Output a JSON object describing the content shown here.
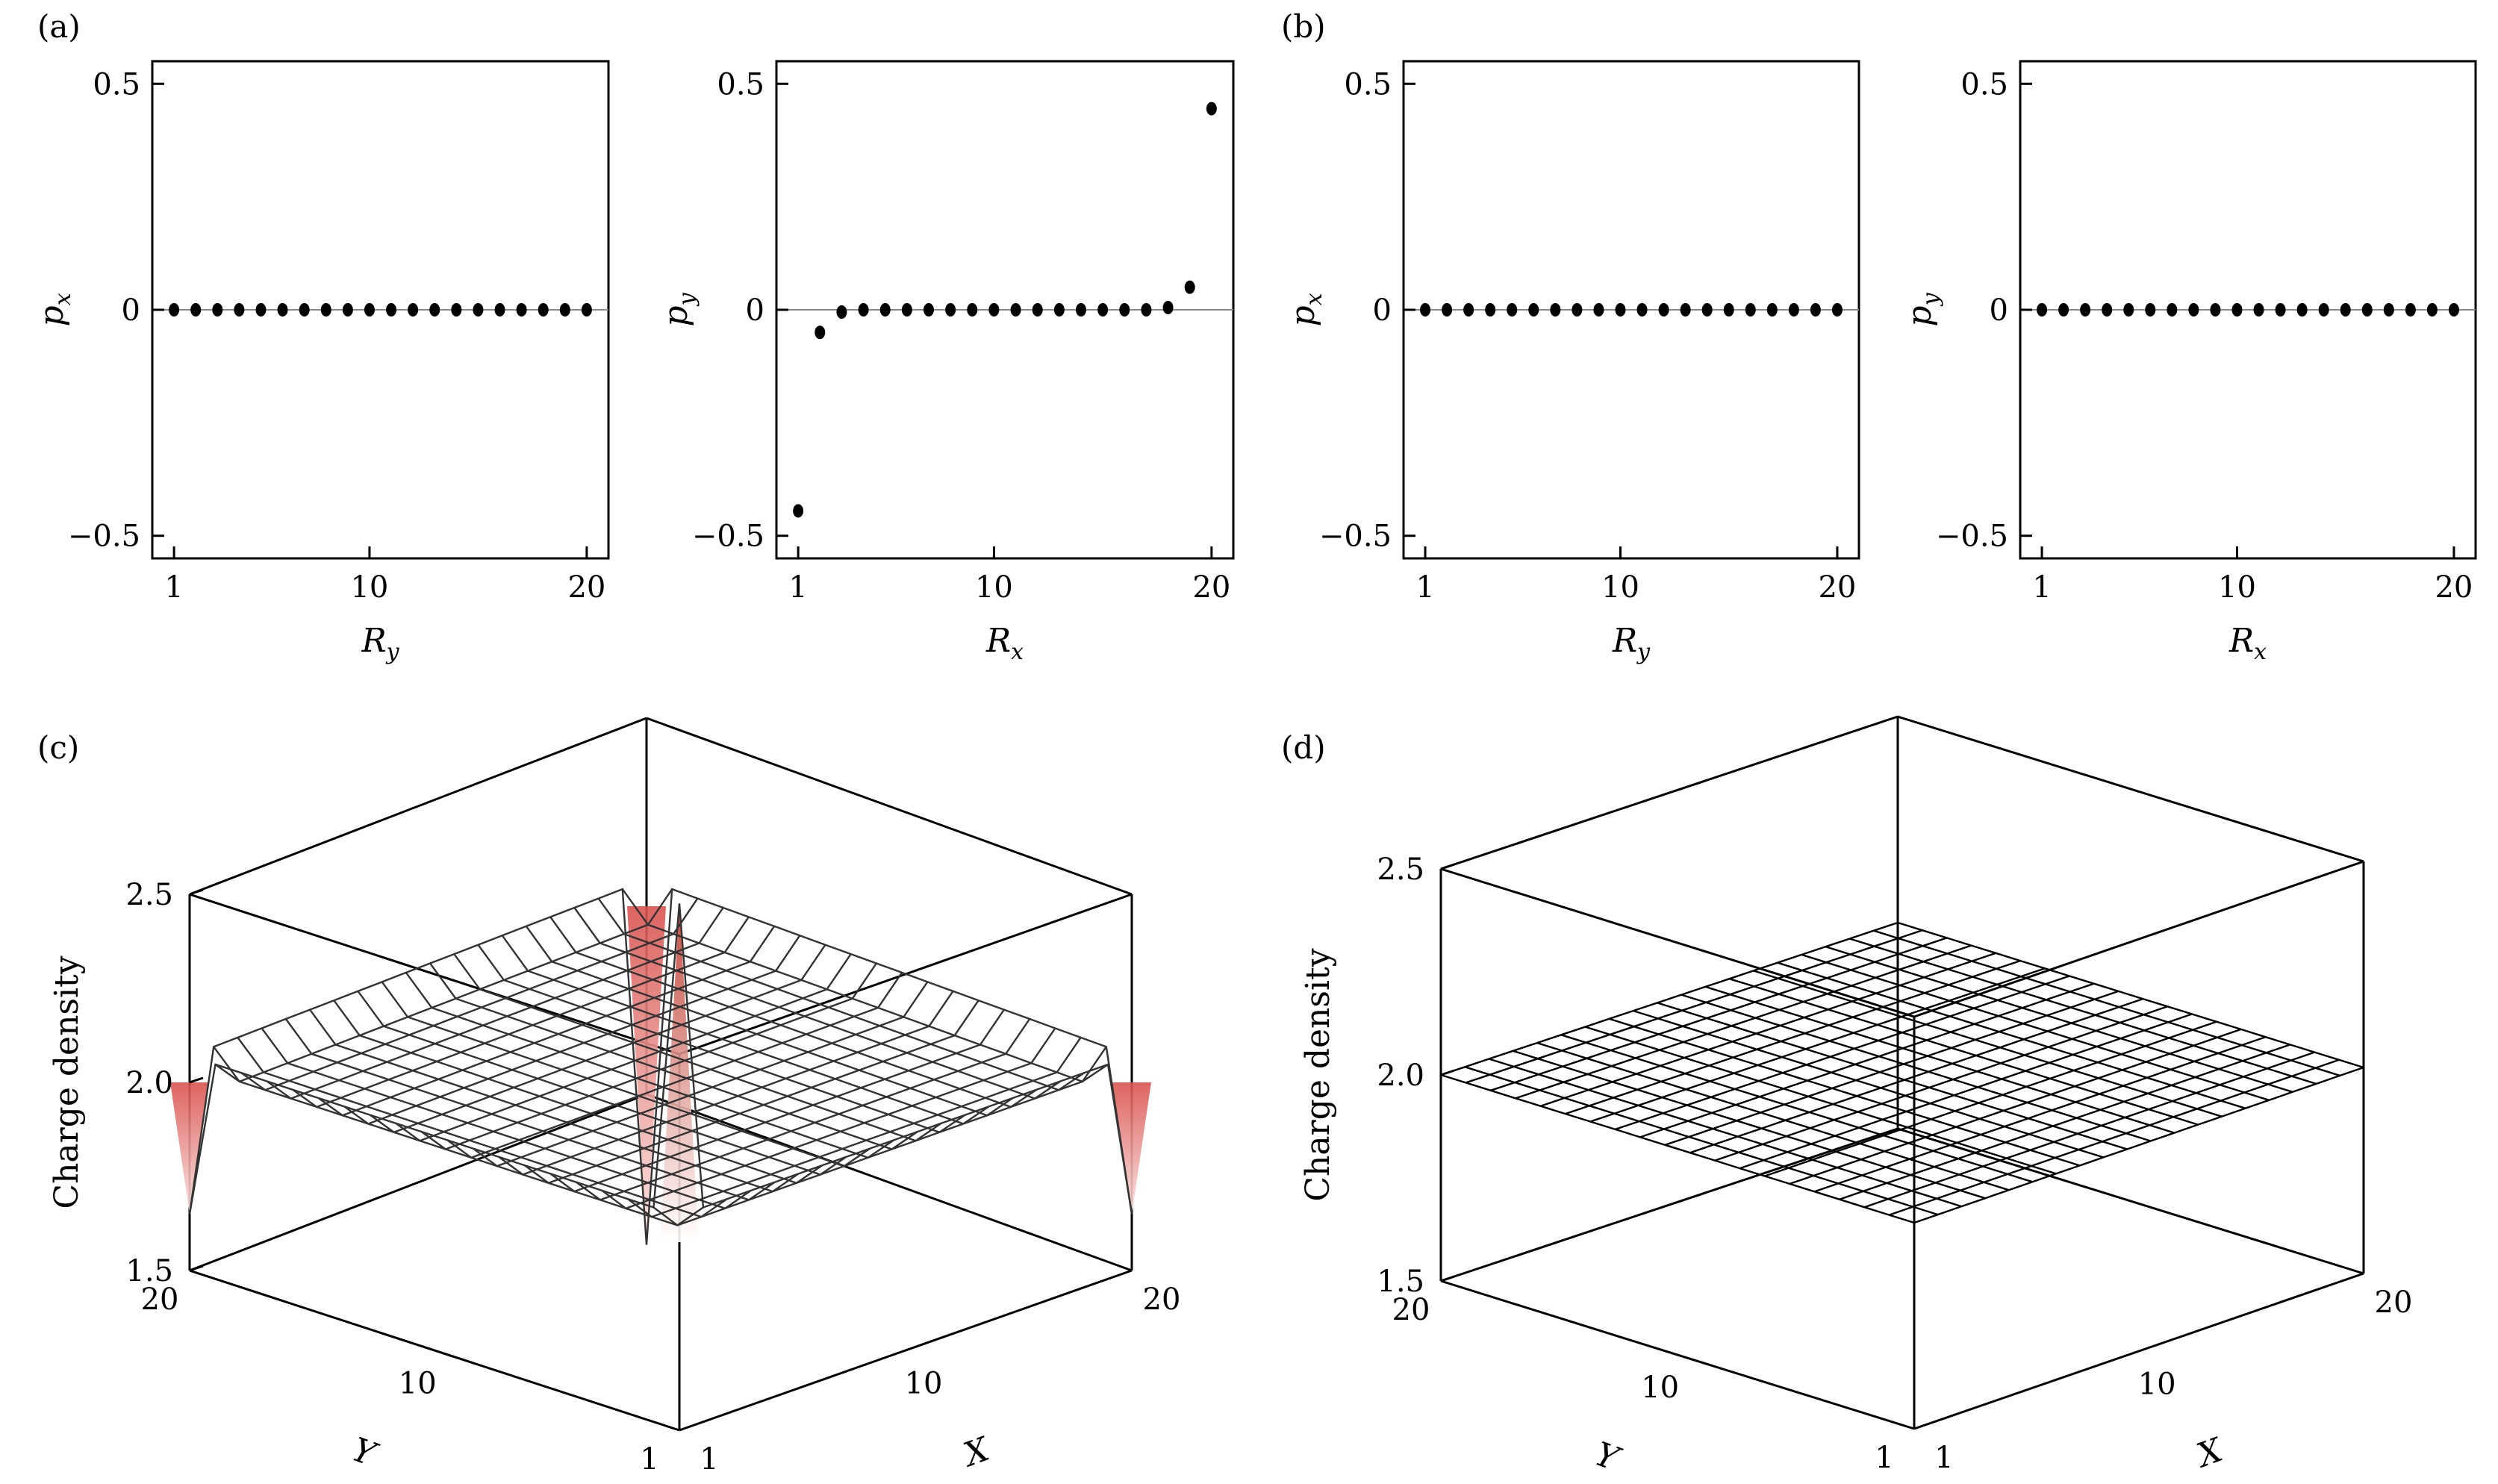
{
  "panel_labels": [
    "(a)",
    "(b)",
    "(c)",
    "(d)"
  ],
  "chart_data": [
    {
      "type": "scatter",
      "panel": "(a)",
      "xlabel": "R_y",
      "ylabel": "p_x",
      "xlim": [
        0,
        21
      ],
      "ylim": [
        -0.55,
        0.55
      ],
      "xticks": [
        1,
        10,
        20
      ],
      "xtick_labels": [
        "1",
        "10",
        "20"
      ],
      "yticks": [
        -0.5,
        0,
        0.5
      ],
      "ytick_labels": [
        "−0.5",
        "0",
        "0.5"
      ],
      "zero_line": true,
      "x": [
        1,
        2,
        3,
        4,
        5,
        6,
        7,
        8,
        9,
        10,
        11,
        12,
        13,
        14,
        15,
        16,
        17,
        18,
        19,
        20
      ],
      "y": [
        0,
        0,
        0,
        0,
        0,
        0,
        0,
        0,
        0,
        0,
        0,
        0,
        0,
        0,
        0,
        0,
        0,
        0,
        0,
        0
      ]
    },
    {
      "type": "scatter",
      "panel": "(a)",
      "xlabel": "R_x",
      "ylabel": "p_y",
      "xlim": [
        0,
        21
      ],
      "ylim": [
        -0.55,
        0.55
      ],
      "xticks": [
        1,
        10,
        20
      ],
      "xtick_labels": [
        "1",
        "10",
        "20"
      ],
      "yticks": [
        -0.5,
        0,
        0.5
      ],
      "ytick_labels": [
        "−0.5",
        "0",
        "0.5"
      ],
      "zero_line": true,
      "x": [
        1,
        2,
        3,
        4,
        5,
        6,
        7,
        8,
        9,
        10,
        11,
        12,
        13,
        14,
        15,
        16,
        17,
        18,
        19,
        20
      ],
      "y": [
        -0.445,
        -0.05,
        -0.005,
        0,
        0,
        0,
        0,
        0,
        0,
        0,
        0,
        0,
        0,
        0,
        0,
        0,
        0,
        0.005,
        0.05,
        0.445
      ]
    },
    {
      "type": "scatter",
      "panel": "(b)",
      "xlabel": "R_y",
      "ylabel": "p_x",
      "xlim": [
        0,
        21
      ],
      "ylim": [
        -0.55,
        0.55
      ],
      "xticks": [
        1,
        10,
        20
      ],
      "xtick_labels": [
        "1",
        "10",
        "20"
      ],
      "yticks": [
        -0.5,
        0,
        0.5
      ],
      "ytick_labels": [
        "−0.5",
        "0",
        "0.5"
      ],
      "zero_line": true,
      "x": [
        1,
        2,
        3,
        4,
        5,
        6,
        7,
        8,
        9,
        10,
        11,
        12,
        13,
        14,
        15,
        16,
        17,
        18,
        19,
        20
      ],
      "y": [
        0,
        0,
        0,
        0,
        0,
        0,
        0,
        0,
        0,
        0,
        0,
        0,
        0,
        0,
        0,
        0,
        0,
        0,
        0,
        0
      ]
    },
    {
      "type": "scatter",
      "panel": "(b)",
      "xlabel": "R_x",
      "ylabel": "p_y",
      "xlim": [
        0,
        21
      ],
      "ylim": [
        -0.55,
        0.55
      ],
      "xticks": [
        1,
        10,
        20
      ],
      "xtick_labels": [
        "1",
        "10",
        "20"
      ],
      "yticks": [
        -0.5,
        0,
        0.5
      ],
      "ytick_labels": [
        "−0.5",
        "0",
        "0.5"
      ],
      "zero_line": true,
      "x": [
        1,
        2,
        3,
        4,
        5,
        6,
        7,
        8,
        9,
        10,
        11,
        12,
        13,
        14,
        15,
        16,
        17,
        18,
        19,
        20
      ],
      "y": [
        0,
        0,
        0,
        0,
        0,
        0,
        0,
        0,
        0,
        0,
        0,
        0,
        0,
        0,
        0,
        0,
        0,
        0,
        0,
        0
      ]
    },
    {
      "type": "surface",
      "panel": "(c)",
      "xlabel": "X",
      "ylabel": "Y",
      "zlabel": "Charge density",
      "grid_size": 20,
      "zlim": [
        1.5,
        2.5
      ],
      "zticks": [
        1.5,
        2.0,
        2.5
      ],
      "ztick_labels": [
        "1.5",
        "2.0",
        "2.5"
      ],
      "xticks": [
        1,
        10,
        20
      ],
      "xtick_labels": [
        "1",
        "10",
        "20"
      ],
      "yticks": [
        1,
        10,
        20
      ],
      "ytick_labels": [
        "1",
        "10",
        "20"
      ],
      "bulk_value": 2.0,
      "edge_value": 2.07,
      "corners": [
        {
          "X": 1,
          "Y": 1,
          "value": 2.9
        },
        {
          "X": 20,
          "Y": 20,
          "value": 1.1
        },
        {
          "X": 1,
          "Y": 20,
          "value": 1.65
        },
        {
          "X": 20,
          "Y": 1,
          "value": 1.65
        }
      ],
      "colormap_color": "#d73027"
    },
    {
      "type": "surface",
      "panel": "(d)",
      "xlabel": "X",
      "ylabel": "Y",
      "zlabel": "Charge density",
      "grid_size": 20,
      "zlim": [
        1.5,
        2.5
      ],
      "zticks": [
        1.5,
        2.0,
        2.5
      ],
      "ztick_labels": [
        "1.5",
        "2.0",
        "2.5"
      ],
      "xticks": [
        1,
        10,
        20
      ],
      "xtick_labels": [
        "1",
        "10",
        "20"
      ],
      "yticks": [
        1,
        10,
        20
      ],
      "ytick_labels": [
        "1",
        "10",
        "20"
      ],
      "bulk_value": 2.0
    }
  ]
}
